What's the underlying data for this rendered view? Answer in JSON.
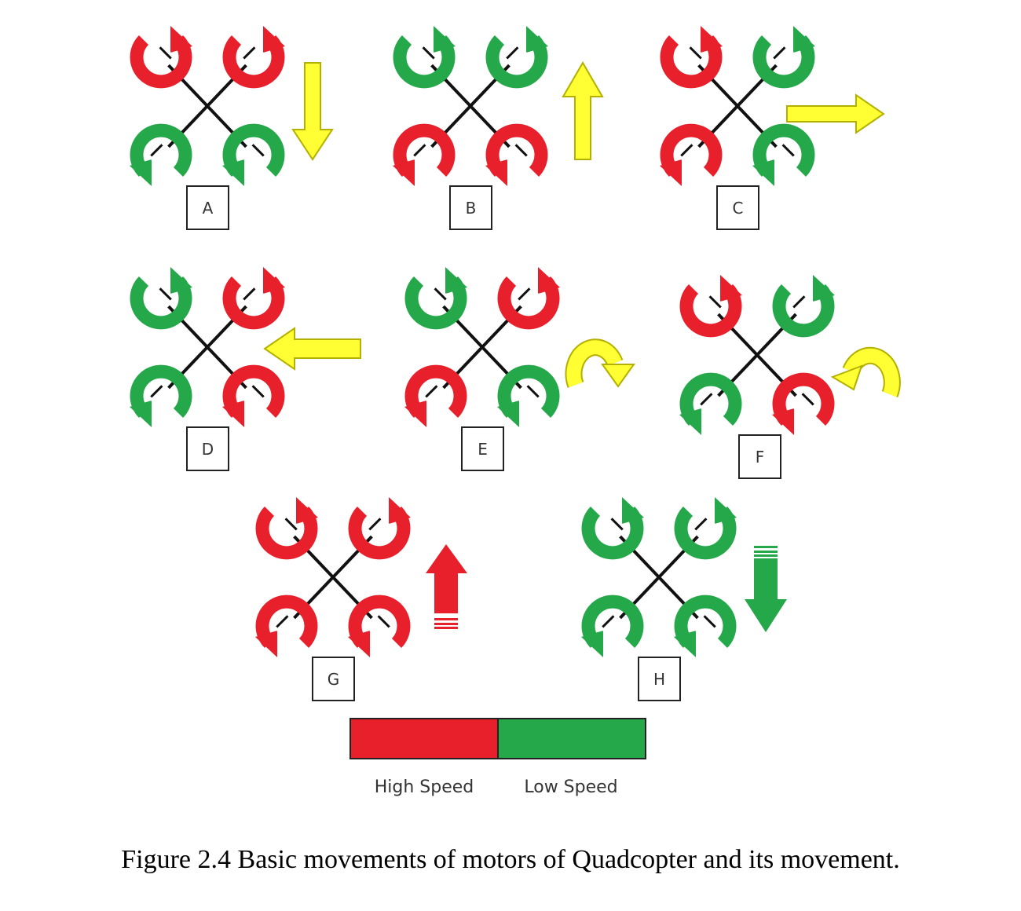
{
  "colors": {
    "high": "#e8202b",
    "low": "#25a84a",
    "yellow": "#ffff33",
    "yellow_stroke": "#b3b000",
    "arm": "#111111"
  },
  "legend": {
    "high_label": "High Speed",
    "low_label": "Low Speed"
  },
  "caption": "Figure 2.4 Basic movements of motors of Quadcopter and its movement.",
  "panels": [
    {
      "label": "A",
      "motors": [
        "high",
        "high",
        "low",
        "low"
      ],
      "movement": "down-arrow"
    },
    {
      "label": "B",
      "motors": [
        "low",
        "low",
        "high",
        "high"
      ],
      "movement": "up-arrow"
    },
    {
      "label": "C",
      "motors": [
        "high",
        "low",
        "high",
        "low"
      ],
      "movement": "right-arrow"
    },
    {
      "label": "D",
      "motors": [
        "low",
        "high",
        "low",
        "high"
      ],
      "movement": "left-arrow"
    },
    {
      "label": "E",
      "motors": [
        "low",
        "high",
        "high",
        "low"
      ],
      "movement": "clockwise-arrow"
    },
    {
      "label": "F",
      "motors": [
        "high",
        "low",
        "low",
        "high"
      ],
      "movement": "counterclockwise-arrow"
    },
    {
      "label": "G",
      "motors": [
        "high",
        "high",
        "high",
        "high"
      ],
      "movement": "up-arrow"
    },
    {
      "label": "H",
      "motors": [
        "low",
        "low",
        "low",
        "low"
      ],
      "movement": "down-arrow"
    }
  ]
}
